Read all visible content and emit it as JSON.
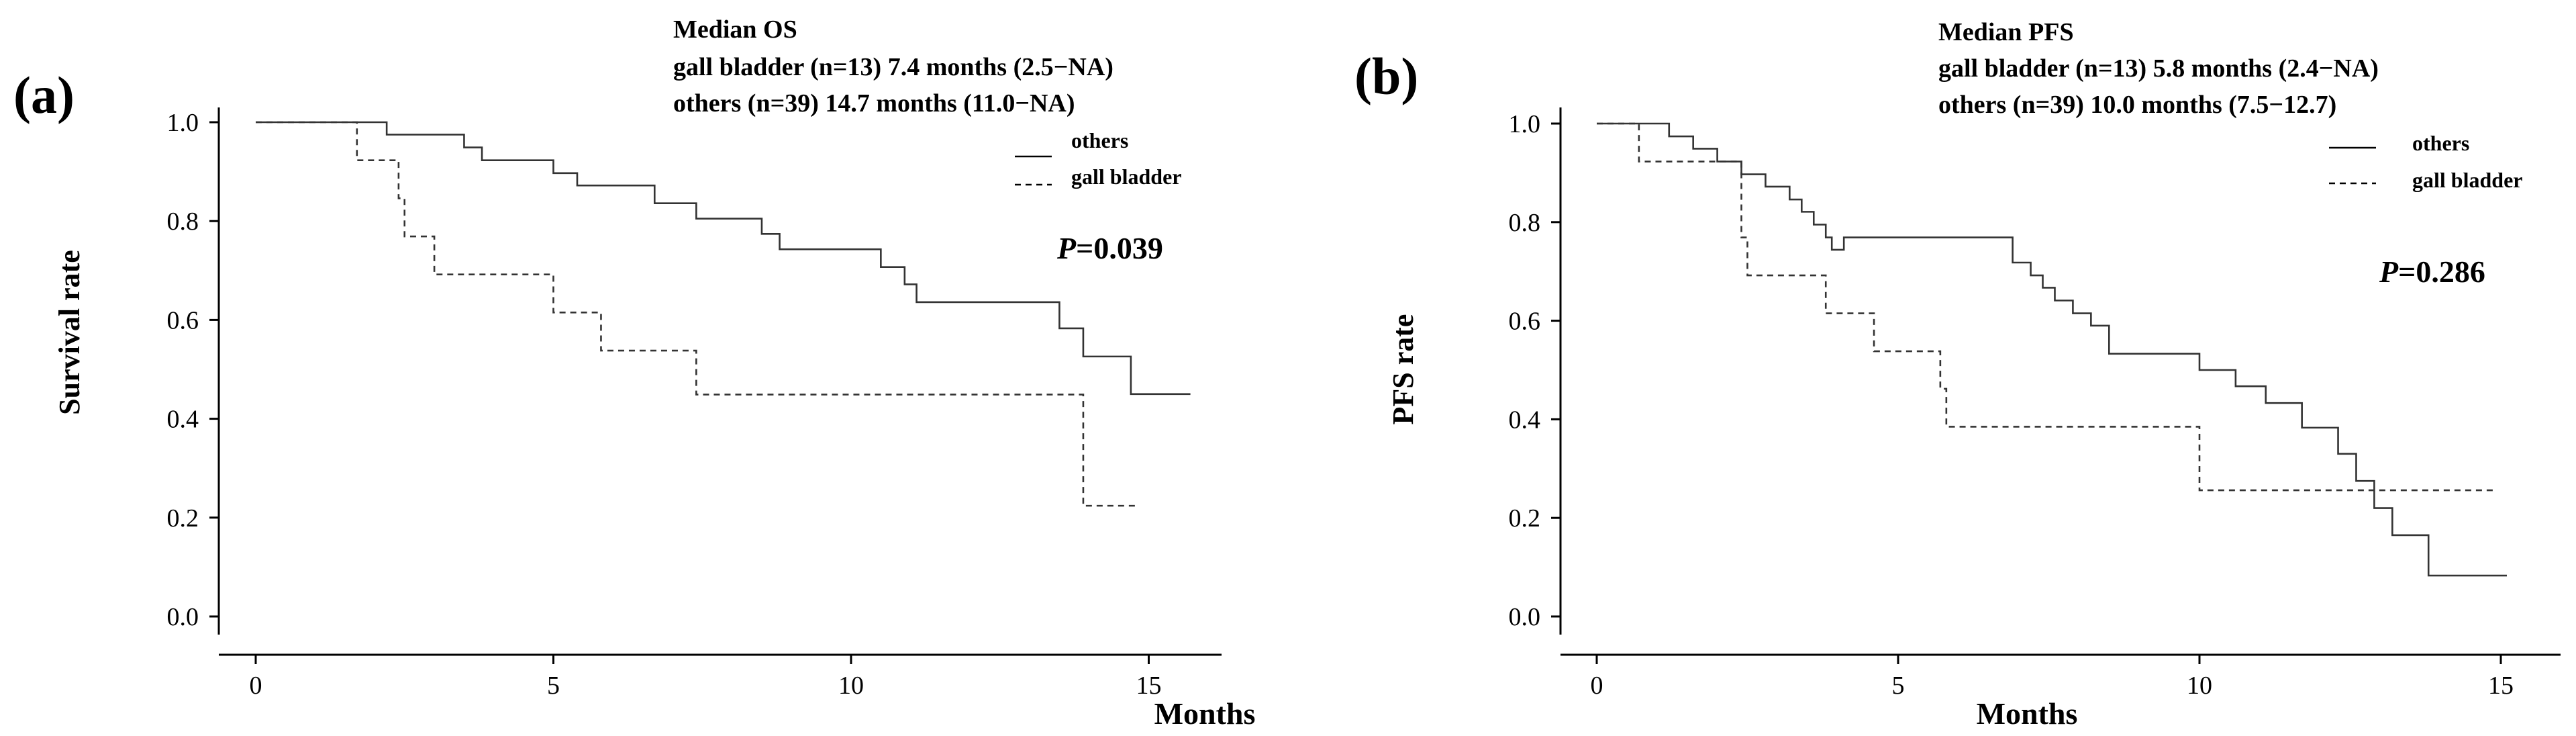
{
  "chart_data": [
    {
      "type": "line",
      "panel_label": "(a)",
      "annotation_lines": [
        "Median OS",
        "gall bladder (n=13) 7.4 months (2.5−NA)",
        "others (n=39)  14.7 months (11.0−NA)"
      ],
      "p_label": "P",
      "p_value": "=0.039",
      "xlabel": "Months",
      "ylabel": "Survival rate",
      "xlim": [
        0,
        15.8
      ],
      "ylim": [
        0,
        1.0
      ],
      "xticks": [
        0,
        5,
        10,
        15
      ],
      "yticks": [
        0.0,
        0.2,
        0.4,
        0.6,
        0.8,
        1.0
      ],
      "legend": "top-right",
      "series": [
        {
          "name": "others",
          "style": "solid",
          "x": [
            0,
            2.2,
            3.5,
            3.8,
            5.0,
            5.4,
            6.7,
            7.4,
            8.5,
            8.8,
            10.5,
            10.9,
            11.1,
            13.5,
            13.9,
            14.7,
            15.7
          ],
          "y": [
            1.0,
            0.975,
            0.949,
            0.923,
            0.897,
            0.872,
            0.836,
            0.805,
            0.774,
            0.743,
            0.707,
            0.672,
            0.636,
            0.583,
            0.526,
            0.45,
            0.45
          ]
        },
        {
          "name": "gall bladder",
          "style": "dashed",
          "x": [
            0,
            1.7,
            2.4,
            2.5,
            3.0,
            5.0,
            5.8,
            7.4,
            13.9,
            14.8
          ],
          "y": [
            1.0,
            0.923,
            0.846,
            0.769,
            0.692,
            0.615,
            0.538,
            0.449,
            0.224,
            0.224
          ]
        }
      ]
    },
    {
      "type": "line",
      "panel_label": "(b)",
      "annotation_lines": [
        "Median PFS",
        "gall bladder (n=13) 5.8 months (2.4−NA)",
        "others (n=39)  10.0 months (7.5−12.7)"
      ],
      "p_label": "P",
      "p_value": "=0.286",
      "xlabel": "Months",
      "ylabel": "PFS rate",
      "xlim": [
        0,
        15.2
      ],
      "ylim": [
        0,
        1.0
      ],
      "xticks": [
        0,
        5,
        10,
        15
      ],
      "yticks": [
        0.0,
        0.2,
        0.4,
        0.6,
        0.8,
        1.0
      ],
      "legend": "top-right",
      "series": [
        {
          "name": "others",
          "style": "solid",
          "x": [
            0,
            1.2,
            1.6,
            2.0,
            2.4,
            2.8,
            3.2,
            3.4,
            3.6,
            3.8,
            3.9,
            4.1,
            6.9,
            7.2,
            7.4,
            7.6,
            7.9,
            8.2,
            8.5,
            10.0,
            10.6,
            11.1,
            11.7,
            12.3,
            12.6,
            12.9,
            13.2,
            13.8,
            15.1
          ],
          "y": [
            1.0,
            0.974,
            0.949,
            0.923,
            0.897,
            0.872,
            0.846,
            0.821,
            0.795,
            0.769,
            0.744,
            0.769,
            0.718,
            0.692,
            0.667,
            0.641,
            0.615,
            0.59,
            0.533,
            0.5,
            0.467,
            0.433,
            0.383,
            0.33,
            0.275,
            0.22,
            0.165,
            0.083,
            0.083
          ]
        },
        {
          "name": "gall bladder",
          "style": "dashed",
          "x": [
            0,
            0.7,
            2.4,
            2.5,
            3.8,
            4.6,
            5.7,
            5.8,
            10.0,
            14.9
          ],
          "y": [
            1.0,
            0.923,
            0.769,
            0.692,
            0.615,
            0.538,
            0.462,
            0.385,
            0.256,
            0.256
          ]
        }
      ]
    }
  ]
}
